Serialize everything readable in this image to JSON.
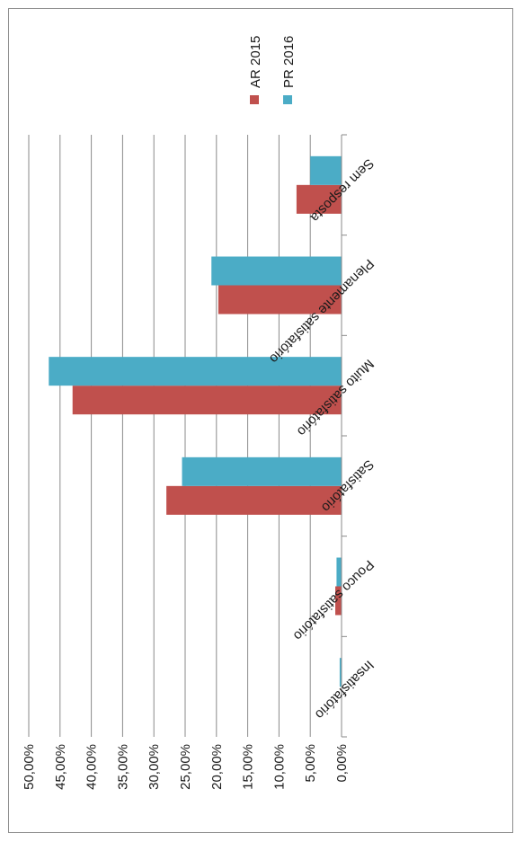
{
  "chart_data": {
    "type": "bar",
    "orientation": "horizontal",
    "rotated": "90-degrees",
    "categories": [
      "Insatisfatório",
      "Pouco satisfatório",
      "Satisfatório",
      "Muito satisfatório",
      "Plenamente satisfatório",
      "Sem resposta"
    ],
    "series": [
      {
        "name": "AR 2015",
        "color": "#c0504d",
        "values": [
          0.0,
          1.0,
          28.0,
          43.0,
          19.7,
          7.2
        ]
      },
      {
        "name": "PR 2016",
        "color": "#4bacc6",
        "values": [
          0.3,
          0.8,
          25.5,
          46.8,
          20.8,
          5.0
        ]
      }
    ],
    "value_axis": {
      "min": 0,
      "max": 50,
      "step": 5,
      "tick_labels": [
        "0,00%",
        "5,00%",
        "10,00%",
        "15,00%",
        "20,00%",
        "25,00%",
        "30,00%",
        "35,00%",
        "40,00%",
        "45,00%",
        "50,00%"
      ]
    },
    "grid": true,
    "legend": "right"
  }
}
